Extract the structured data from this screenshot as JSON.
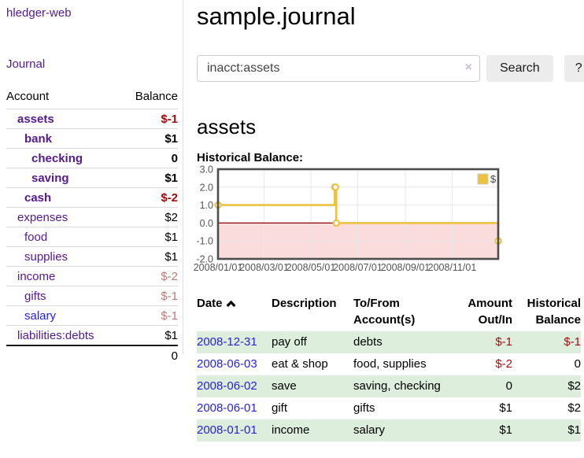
{
  "app": {
    "brand": "hledger-web",
    "nav_journal": "Journal"
  },
  "sidebar": {
    "header": {
      "account": "Account",
      "balance": "Balance"
    },
    "accounts": [
      {
        "name": "assets",
        "balance": "$-1",
        "depth": 1,
        "emph": true,
        "link": "purple",
        "bal_style": "neg-strong"
      },
      {
        "name": "bank",
        "balance": "$1",
        "depth": 2,
        "emph": true,
        "link": "purple",
        "bal_style": "pos"
      },
      {
        "name": "checking",
        "balance": "0",
        "depth": 3,
        "emph": true,
        "link": "purple",
        "bal_style": "pos"
      },
      {
        "name": "saving",
        "balance": "$1",
        "depth": 3,
        "emph": true,
        "link": "purple",
        "bal_style": "pos"
      },
      {
        "name": "cash",
        "balance": "$-2",
        "depth": 2,
        "emph": true,
        "link": "purple",
        "bal_style": "neg-strong"
      },
      {
        "name": "expenses",
        "balance": "$2",
        "depth": 1,
        "emph": false,
        "link": "purple",
        "bal_style": "pos"
      },
      {
        "name": "food",
        "balance": "$1",
        "depth": 2,
        "emph": false,
        "link": "purple",
        "bal_style": "pos"
      },
      {
        "name": "supplies",
        "balance": "$1",
        "depth": 2,
        "emph": false,
        "link": "purple",
        "bal_style": "pos"
      },
      {
        "name": "income",
        "balance": "$-2",
        "depth": 1,
        "emph": false,
        "link": "purple",
        "bal_style": "neg-muted"
      },
      {
        "name": "gifts",
        "balance": "$-1",
        "depth": 2,
        "emph": false,
        "link": "purple",
        "bal_style": "neg-muted"
      },
      {
        "name": "salary",
        "balance": "$-1",
        "depth": 2,
        "emph": false,
        "link": "blue",
        "bal_style": "neg-muted"
      },
      {
        "name": "liabilities:debts",
        "balance": "$1",
        "depth": 1,
        "emph": false,
        "link": "purple",
        "bal_style": "pos"
      }
    ],
    "total": "0"
  },
  "main": {
    "title": "sample.journal",
    "search": {
      "value": "inacct:assets",
      "clear_icon": "×",
      "button_label": "Search",
      "help_label": "?"
    },
    "account_heading": "assets",
    "chart_label": "Historical Balance:"
  },
  "chart_data": {
    "type": "line",
    "title": "Historical Balance",
    "series": [
      {
        "name": "$",
        "color": "#edc240",
        "steps": true,
        "points": [
          [
            "2008-01-01",
            1
          ],
          [
            "2008-06-01",
            2
          ],
          [
            "2008-06-02",
            2
          ],
          [
            "2008-06-03",
            0
          ],
          [
            "2008-12-31",
            -1
          ]
        ]
      }
    ],
    "xrange": [
      "2008-01-01",
      "2008-12-31"
    ],
    "ylim": [
      -2,
      3
    ],
    "yticks": [
      "3.0",
      "2.0",
      "1.0",
      "0.0",
      "-1.0",
      "-2.0"
    ],
    "xticks": [
      "2008/01/01",
      "2008/03/01",
      "2008/05/01",
      "2008/07/01",
      "2008/09/01",
      "2008/11/01"
    ],
    "grid": true,
    "legend": {
      "label": "$",
      "position": "top-right"
    },
    "colors": {
      "negative_region": "#fbdcdc",
      "zero_line": "#8b0000",
      "border": "#4d4d4d",
      "gridline": "#e7e7e7",
      "tick_text": "#545454",
      "marker_fill": "#ffffff"
    }
  },
  "register": {
    "headers": {
      "date": "Date",
      "description": "Description",
      "accounts": "To/From Account(s)",
      "amount": "Amount Out/In",
      "balance": "Historical Balance"
    },
    "sort_icon": "chevron-up",
    "rows": [
      {
        "date": "2008-12-31",
        "description": "pay off",
        "accounts": "debts",
        "amount": "$-1",
        "balance": "$-1"
      },
      {
        "date": "2008-06-03",
        "description": "eat & shop",
        "accounts": "food, supplies",
        "amount": "$-2",
        "balance": "0"
      },
      {
        "date": "2008-06-02",
        "description": "save",
        "accounts": "saving, checking",
        "amount": "0",
        "balance": "$2"
      },
      {
        "date": "2008-06-01",
        "description": "gift",
        "accounts": "gifts",
        "amount": "$1",
        "balance": "$2"
      },
      {
        "date": "2008-01-01",
        "description": "income",
        "accounts": "salary",
        "amount": "$1",
        "balance": "$1"
      }
    ]
  }
}
